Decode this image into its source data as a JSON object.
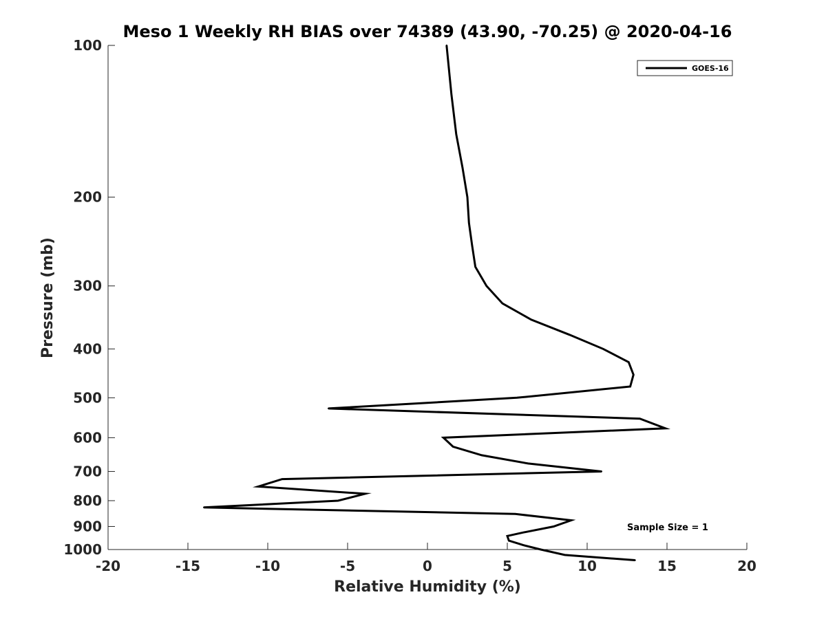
{
  "chart_data": {
    "type": "line",
    "title": "Meso 1 Weekly RH BIAS over 74389 (43.90, -70.25) @ 2020-04-16",
    "xlabel": "Relative Humidity (%)",
    "ylabel": "Pressure (mb)",
    "xlim": [
      -20,
      20
    ],
    "ylim": [
      100,
      1000
    ],
    "y_scale": "log",
    "y_reversed": true,
    "grid": false,
    "legend_position": "top-right",
    "x_ticks": [
      -20,
      -15,
      -10,
      -5,
      0,
      5,
      10,
      15,
      20
    ],
    "x_tick_labels": [
      "-20",
      "-15",
      "-10",
      "-5",
      "0",
      "5",
      "10",
      "15",
      "20"
    ],
    "y_ticks": [
      100,
      200,
      300,
      400,
      500,
      600,
      700,
      800,
      900,
      1000
    ],
    "y_tick_labels": [
      "100",
      "200",
      "300",
      "400",
      "500",
      "600",
      "700",
      "800",
      "900",
      "1000"
    ],
    "series": [
      {
        "name": "GOES-16",
        "color": "#000000",
        "points": [
          {
            "x": 1.2,
            "y": 100
          },
          {
            "x": 1.5,
            "y": 125
          },
          {
            "x": 1.8,
            "y": 150
          },
          {
            "x": 2.2,
            "y": 175
          },
          {
            "x": 2.5,
            "y": 200
          },
          {
            "x": 2.6,
            "y": 225
          },
          {
            "x": 2.8,
            "y": 250
          },
          {
            "x": 3.0,
            "y": 275
          },
          {
            "x": 3.7,
            "y": 300
          },
          {
            "x": 4.7,
            "y": 325
          },
          {
            "x": 6.5,
            "y": 350
          },
          {
            "x": 8.9,
            "y": 375
          },
          {
            "x": 11.0,
            "y": 400
          },
          {
            "x": 12.6,
            "y": 425
          },
          {
            "x": 12.9,
            "y": 450
          },
          {
            "x": 12.7,
            "y": 475
          },
          {
            "x": 5.6,
            "y": 500
          },
          {
            "x": -6.2,
            "y": 525
          },
          {
            "x": 13.3,
            "y": 550
          },
          {
            "x": 14.9,
            "y": 575
          },
          {
            "x": 1.0,
            "y": 600
          },
          {
            "x": 1.6,
            "y": 625
          },
          {
            "x": 3.4,
            "y": 650
          },
          {
            "x": 6.3,
            "y": 675
          },
          {
            "x": 10.9,
            "y": 700
          },
          {
            "x": -9.1,
            "y": 725
          },
          {
            "x": -10.6,
            "y": 750
          },
          {
            "x": -3.9,
            "y": 775
          },
          {
            "x": -5.6,
            "y": 800
          },
          {
            "x": -14.0,
            "y": 825
          },
          {
            "x": 5.5,
            "y": 850
          },
          {
            "x": 9.0,
            "y": 875
          },
          {
            "x": 7.9,
            "y": 900
          },
          {
            "x": 6.0,
            "y": 925
          },
          {
            "x": 5.0,
            "y": 940
          },
          {
            "x": 5.1,
            "y": 960
          },
          {
            "x": 6.0,
            "y": 980
          },
          {
            "x": 7.1,
            "y": 1000
          },
          {
            "x": 8.6,
            "y": 1025
          },
          {
            "x": 13.0,
            "y": 1050
          }
        ]
      }
    ],
    "annotations": [
      {
        "text": "Sample Size = 1"
      }
    ]
  }
}
